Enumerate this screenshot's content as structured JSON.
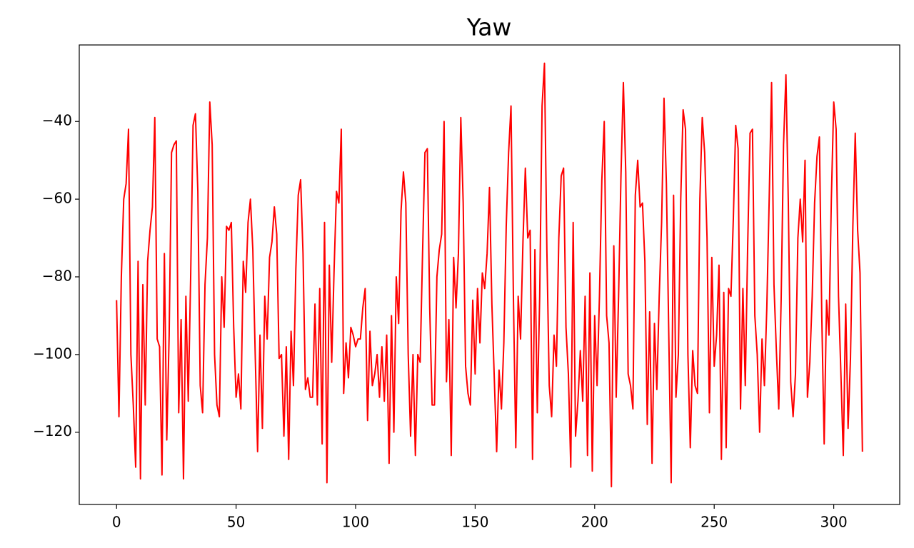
{
  "chart_data": {
    "type": "line",
    "title": "Yaw",
    "x": [
      0,
      1,
      2,
      3,
      4,
      5,
      6,
      7,
      8,
      9,
      10,
      11,
      12,
      13,
      14,
      15,
      16,
      17,
      18,
      19,
      20,
      21,
      22,
      23,
      24,
      25,
      26,
      27,
      28,
      29,
      30,
      31,
      32,
      33,
      34,
      35,
      36,
      37,
      38,
      39,
      40,
      41,
      42,
      43,
      44,
      45,
      46,
      47,
      48,
      49,
      50,
      51,
      52,
      53,
      54,
      55,
      56,
      57,
      58,
      59,
      60,
      61,
      62,
      63,
      64,
      65,
      66,
      67,
      68,
      69,
      70,
      71,
      72,
      73,
      74,
      75,
      76,
      77,
      78,
      79,
      80,
      81,
      82,
      83,
      84,
      85,
      86,
      87,
      88,
      89,
      90,
      91,
      92,
      93,
      94,
      95,
      96,
      97,
      98,
      99,
      100,
      101,
      102,
      103,
      104,
      105,
      106,
      107,
      108,
      109,
      110,
      111,
      112,
      113,
      114,
      115,
      116,
      117,
      118,
      119,
      120,
      121,
      122,
      123,
      124,
      125,
      126,
      127,
      128,
      129,
      130,
      131,
      132,
      133,
      134,
      135,
      136,
      137,
      138,
      139,
      140,
      141,
      142,
      143,
      144,
      145,
      146,
      147,
      148,
      149,
      150,
      151,
      152,
      153,
      154,
      155,
      156,
      157,
      158,
      159,
      160,
      161,
      162,
      163,
      164,
      165,
      166,
      167,
      168,
      169,
      170,
      171,
      172,
      173,
      174,
      175,
      176,
      177,
      178,
      179,
      180,
      181,
      182,
      183,
      184,
      185,
      186,
      187,
      188,
      189,
      190,
      191,
      192,
      193,
      194,
      195,
      196,
      197,
      198,
      199,
      200,
      201,
      202,
      203,
      204,
      205,
      206,
      207,
      208,
      209,
      210,
      211,
      212,
      213,
      214,
      215,
      216,
      217,
      218,
      219,
      220,
      221,
      222,
      223,
      224,
      225,
      226,
      227,
      228,
      229,
      230,
      231,
      232,
      233,
      234,
      235,
      236,
      237,
      238,
      239,
      240,
      241,
      242,
      243,
      244,
      245,
      246,
      247,
      248,
      249,
      250,
      251,
      252,
      253,
      254,
      255,
      256,
      257,
      258,
      259,
      260,
      261,
      262,
      263,
      264,
      265,
      266,
      267,
      268,
      269,
      270,
      271,
      272,
      273,
      274,
      275,
      276,
      277,
      278,
      279,
      280,
      281,
      282,
      283,
      284,
      285,
      286,
      287,
      288,
      289,
      290,
      291,
      292,
      293,
      294,
      295,
      296,
      297,
      298,
      299,
      300,
      301,
      302,
      303,
      304,
      305,
      306,
      307,
      308,
      309,
      310,
      311,
      312
    ],
    "series": [
      {
        "color": "#ff0000",
        "values": [
          -86,
          -116,
          -80,
          -60,
          -56,
          -42,
          -100,
          -113,
          -129,
          -76,
          -132,
          -82,
          -113,
          -76,
          -68,
          -62,
          -39,
          -96,
          -98,
          -131,
          -74,
          -122,
          -95,
          -48,
          -46,
          -45,
          -115,
          -91,
          -132,
          -85,
          -112,
          -80,
          -41,
          -38,
          -58,
          -108,
          -115,
          -82,
          -70,
          -35,
          -46,
          -100,
          -113,
          -116,
          -80,
          -93,
          -67,
          -68,
          -66,
          -93,
          -111,
          -105,
          -114,
          -76,
          -84,
          -66,
          -60,
          -73,
          -100,
          -125,
          -95,
          -119,
          -85,
          -96,
          -75,
          -71,
          -62,
          -69,
          -101,
          -100,
          -121,
          -98,
          -127,
          -94,
          -108,
          -78,
          -59,
          -55,
          -74,
          -109,
          -106,
          -111,
          -111,
          -87,
          -113,
          -83,
          -123,
          -66,
          -133,
          -77,
          -102,
          -78,
          -58,
          -61,
          -42,
          -110,
          -97,
          -106,
          -93,
          -95,
          -98,
          -96,
          -96,
          -88,
          -83,
          -117,
          -94,
          -108,
          -105,
          -100,
          -111,
          -98,
          -112,
          -95,
          -128,
          -90,
          -120,
          -80,
          -92,
          -63,
          -53,
          -61,
          -100,
          -121,
          -100,
          -126,
          -100,
          -102,
          -74,
          -48,
          -47,
          -88,
          -113,
          -113,
          -80,
          -73,
          -69,
          -40,
          -107,
          -91,
          -126,
          -75,
          -88,
          -74,
          -39,
          -61,
          -103,
          -110,
          -113,
          -86,
          -105,
          -83,
          -97,
          -79,
          -83,
          -74,
          -57,
          -87,
          -106,
          -125,
          -104,
          -114,
          -97,
          -67,
          -48,
          -36,
          -85,
          -124,
          -85,
          -96,
          -71,
          -52,
          -70,
          -68,
          -127,
          -73,
          -115,
          -85,
          -36,
          -25,
          -73,
          -108,
          -116,
          -95,
          -103,
          -70,
          -54,
          -52,
          -93,
          -105,
          -129,
          -66,
          -121,
          -112,
          -99,
          -112,
          -85,
          -126,
          -79,
          -130,
          -90,
          -108,
          -85,
          -55,
          -40,
          -90,
          -97,
          -134,
          -72,
          -111,
          -85,
          -54,
          -30,
          -53,
          -105,
          -108,
          -114,
          -59,
          -50,
          -62,
          -61,
          -76,
          -118,
          -89,
          -128,
          -92,
          -109,
          -85,
          -66,
          -34,
          -56,
          -95,
          -133,
          -59,
          -111,
          -100,
          -60,
          -37,
          -42,
          -100,
          -124,
          -99,
          -108,
          -110,
          -60,
          -39,
          -48,
          -70,
          -115,
          -75,
          -103,
          -95,
          -77,
          -127,
          -84,
          -124,
          -83,
          -85,
          -65,
          -41,
          -47,
          -114,
          -83,
          -108,
          -72,
          -43,
          -42,
          -90,
          -100,
          -120,
          -96,
          -108,
          -88,
          -60,
          -30,
          -82,
          -99,
          -114,
          -86,
          -46,
          -28,
          -61,
          -107,
          -116,
          -105,
          -70,
          -60,
          -71,
          -50,
          -111,
          -102,
          -85,
          -61,
          -49,
          -44,
          -90,
          -123,
          -86,
          -95,
          -60,
          -35,
          -42,
          -85,
          -105,
          -126,
          -87,
          -119,
          -101,
          -67,
          -43,
          -68,
          -79,
          -125
        ]
      }
    ],
    "xlim": [
      -15.6,
      327.6
    ],
    "ylim": [
      -138.6,
      -20.3
    ],
    "xticks": [
      0,
      50,
      100,
      150,
      200,
      250,
      300
    ],
    "yticks": [
      {
        "value": -40,
        "label": "−40"
      },
      {
        "value": -60,
        "label": "−60"
      },
      {
        "value": -80,
        "label": "−80"
      },
      {
        "value": -100,
        "label": "−100"
      },
      {
        "value": -120,
        "label": "−120"
      }
    ]
  }
}
